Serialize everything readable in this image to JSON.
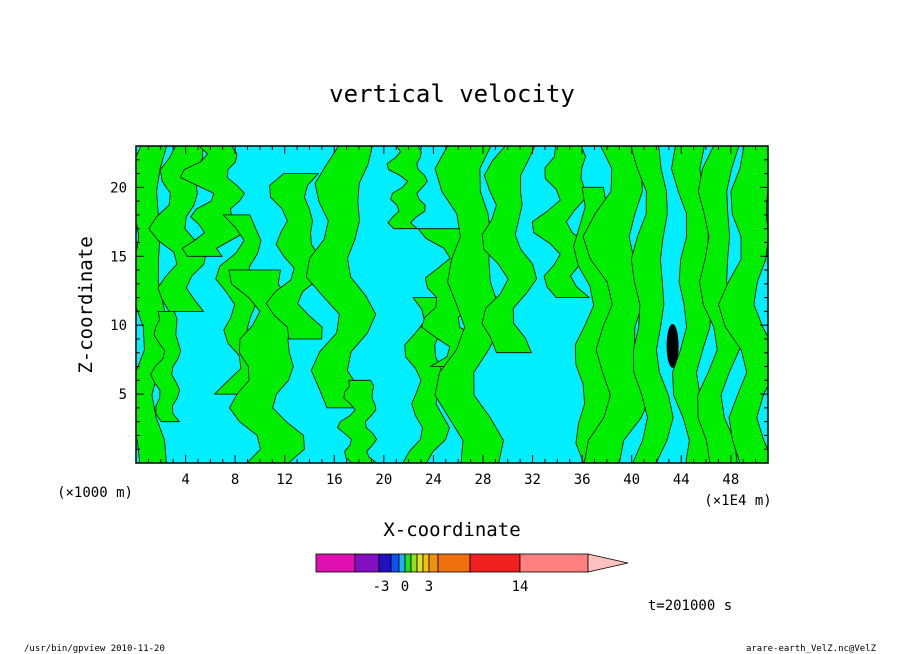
{
  "chart_data": {
    "type": "heatmap",
    "title": "vertical velocity",
    "xlabel": "X-coordinate",
    "ylabel": "Z-coordinate",
    "x_tick_labels": [
      "4",
      "8",
      "12",
      "16",
      "20",
      "24",
      "28",
      "32",
      "36",
      "40",
      "44",
      "48"
    ],
    "x_ticks": [
      4,
      8,
      12,
      16,
      20,
      24,
      28,
      32,
      36,
      40,
      44,
      48
    ],
    "xlim": [
      0,
      51
    ],
    "y_tick_labels": [
      "5",
      "10",
      "15",
      "20"
    ],
    "y_ticks": [
      5,
      10,
      15,
      20
    ],
    "ylim": [
      0,
      23
    ],
    "x_unit_left": "(×1000 m)",
    "x_unit_right": "(×1E4 m)",
    "colorbar": {
      "colors": [
        "#e010b0",
        "#8010c0",
        "#2010c0",
        "#1050f0",
        "#20b0f0",
        "#20e020",
        "#90e020",
        "#e0e020",
        "#f0c010",
        "#f09010",
        "#f07010",
        "#f02020",
        "#ff8080",
        "#ffc0c0"
      ],
      "tick_labels": [
        "-3",
        "0",
        "3",
        "14"
      ],
      "tick_values": [
        -3,
        0,
        3,
        14
      ]
    },
    "field_colors": {
      "negative": "#00eeff",
      "positive": "#00ee00",
      "strong_negative": "#000000"
    },
    "grid": false
  },
  "time_label": "t=201000 s",
  "footer_left": "/usr/bin/gpview   2010-11-20",
  "footer_right": "arare-earth_VelZ.nc@VelZ"
}
